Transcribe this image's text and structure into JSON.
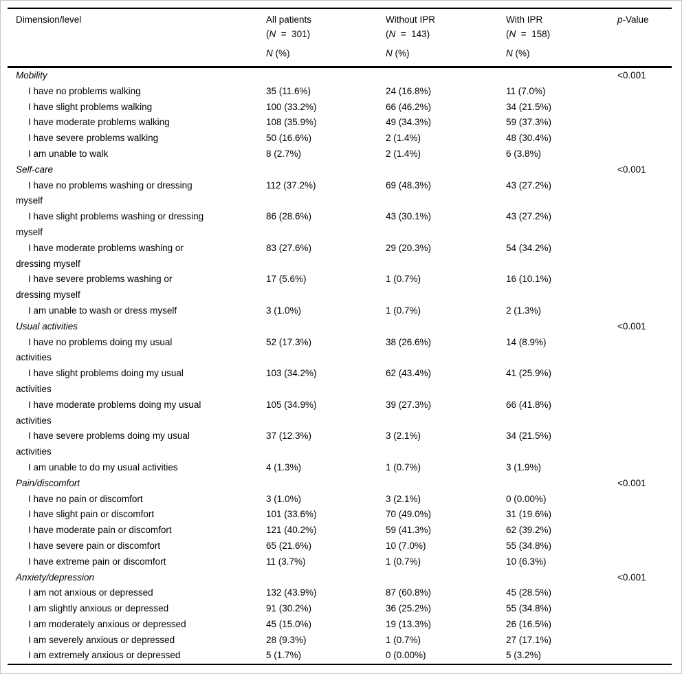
{
  "colors": {
    "text": "#000000",
    "rule": "#000000",
    "page_border": "#c4c4c4",
    "background": "#ffffff"
  },
  "table": {
    "header": {
      "dimension_label": "Dimension/level",
      "columns": [
        {
          "title": "All patients",
          "n_eq": "(N  =  301)",
          "sub": "N (%)"
        },
        {
          "title": "Without IPR",
          "n_eq": "(N  =  143)",
          "sub": "N (%)"
        },
        {
          "title": "With IPR",
          "n_eq": "(N  =  158)",
          "sub": "N (%)"
        }
      ],
      "p_label": "p-Value"
    },
    "sections": [
      {
        "name": "Mobility",
        "p_value": "<0.001",
        "rows": [
          {
            "label": "I have no problems walking",
            "all": "35 (11.6%)",
            "without": "24 (16.8%)",
            "with": "11 (7.0%)"
          },
          {
            "label": "I have slight problems walking",
            "all": "100 (33.2%)",
            "without": "66 (46.2%)",
            "with": "34 (21.5%)"
          },
          {
            "label": "I have moderate problems walking",
            "all": "108 (35.9%)",
            "without": "49 (34.3%)",
            "with": "59 (37.3%)"
          },
          {
            "label": "I have severe problems walking",
            "all": "50 (16.6%)",
            "without": "2 (1.4%)",
            "with": "48 (30.4%)"
          },
          {
            "label": "I am unable to walk",
            "all": "8 (2.7%)",
            "without": "2 (1.4%)",
            "with": "6 (3.8%)"
          }
        ]
      },
      {
        "name": "Self-care",
        "p_value": "<0.001",
        "rows": [
          {
            "label": "I have no problems washing or dressing\nmyself",
            "all": "112 (37.2%)",
            "without": "69 (48.3%)",
            "with": "43 (27.2%)"
          },
          {
            "label": "I have slight problems washing or dressing\nmyself",
            "all": "86 (28.6%)",
            "without": "43 (30.1%)",
            "with": "43 (27.2%)"
          },
          {
            "label": "I have moderate problems washing or\ndressing myself",
            "all": "83 (27.6%)",
            "without": "29 (20.3%)",
            "with": "54 (34.2%)"
          },
          {
            "label": "I have severe problems washing or\ndressing myself",
            "all": "17 (5.6%)",
            "without": "1 (0.7%)",
            "with": "16 (10.1%)"
          },
          {
            "label": "I am unable to wash or dress myself",
            "all": "3 (1.0%)",
            "without": "1 (0.7%)",
            "with": "2 (1.3%)"
          }
        ]
      },
      {
        "name": "Usual activities",
        "p_value": "<0.001",
        "rows": [
          {
            "label": "I have no problems doing my usual\nactivities",
            "all": "52 (17.3%)",
            "without": "38 (26.6%)",
            "with": "14 (8.9%)"
          },
          {
            "label": "I have slight problems doing my usual\nactivities",
            "all": "103 (34.2%)",
            "without": "62 (43.4%)",
            "with": "41 (25.9%)"
          },
          {
            "label": "I have moderate problems doing my usual\nactivities",
            "all": "105 (34.9%)",
            "without": "39 (27.3%)",
            "with": "66 (41.8%)"
          },
          {
            "label": "I have severe problems doing my usual\nactivities",
            "all": "37 (12.3%)",
            "without": "3 (2.1%)",
            "with": "34 (21.5%)"
          },
          {
            "label": "I am unable to do my usual activities",
            "all": "4 (1.3%)",
            "without": "1 (0.7%)",
            "with": "3 (1.9%)"
          }
        ]
      },
      {
        "name": "Pain/discomfort",
        "p_value": "<0.001",
        "rows": [
          {
            "label": "I have no pain or discomfort",
            "all": "3 (1.0%)",
            "without": "3 (2.1%)",
            "with": "0 (0.00%)"
          },
          {
            "label": "I have slight pain or discomfort",
            "all": "101 (33.6%)",
            "without": "70 (49.0%)",
            "with": "31 (19.6%)"
          },
          {
            "label": "I have moderate pain or discomfort",
            "all": "121 (40.2%)",
            "without": "59 (41.3%)",
            "with": "62 (39.2%)"
          },
          {
            "label": "I have severe pain or discomfort",
            "all": "65 (21.6%)",
            "without": "10 (7.0%)",
            "with": "55 (34.8%)"
          },
          {
            "label": "I have extreme pain or discomfort",
            "all": "11 (3.7%)",
            "without": "1 (0.7%)",
            "with": "10 (6.3%)"
          }
        ]
      },
      {
        "name": "Anxiety/depression",
        "p_value": "<0.001",
        "rows": [
          {
            "label": "I am not anxious or depressed",
            "all": "132 (43.9%)",
            "without": "87 (60.8%)",
            "with": "45 (28.5%)"
          },
          {
            "label": "I am slightly anxious or depressed",
            "all": "91 (30.2%)",
            "without": "36 (25.2%)",
            "with": "55 (34.8%)"
          },
          {
            "label": "I am moderately anxious or depressed",
            "all": "45 (15.0%)",
            "without": "19 (13.3%)",
            "with": "26 (16.5%)"
          },
          {
            "label": "I am severely anxious or depressed",
            "all": "28 (9.3%)",
            "without": "1 (0.7%)",
            "with": "27 (17.1%)"
          },
          {
            "label": "I am extremely anxious or depressed",
            "all": "5 (1.7%)",
            "without": "0 (0.00%)",
            "with": "5 (3.2%)"
          }
        ]
      }
    ]
  }
}
